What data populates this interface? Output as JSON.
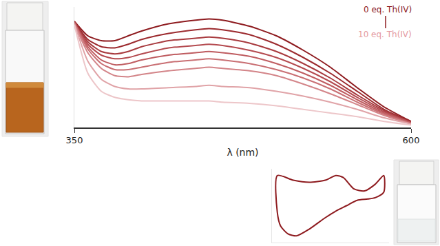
{
  "chart_data": [
    {
      "type": "line",
      "x_label": "λ (nm)",
      "x": [
        350,
        360,
        370,
        380,
        390,
        400,
        420,
        440,
        450,
        460,
        480,
        500,
        520,
        540,
        560,
        580,
        600
      ],
      "series": [
        {
          "color": "#8e1b1f",
          "values": [
            0.88,
            0.76,
            0.72,
            0.72,
            0.76,
            0.8,
            0.86,
            0.89,
            0.9,
            0.89,
            0.84,
            0.76,
            0.64,
            0.5,
            0.33,
            0.17,
            0.05
          ]
        },
        {
          "color": "#9c2a2e",
          "values": [
            0.88,
            0.73,
            0.67,
            0.66,
            0.69,
            0.73,
            0.78,
            0.81,
            0.82,
            0.81,
            0.77,
            0.69,
            0.58,
            0.45,
            0.3,
            0.15,
            0.05
          ]
        },
        {
          "color": "#a83a3e",
          "values": [
            0.88,
            0.71,
            0.63,
            0.61,
            0.63,
            0.67,
            0.72,
            0.74,
            0.75,
            0.74,
            0.7,
            0.63,
            0.53,
            0.41,
            0.27,
            0.14,
            0.04
          ]
        },
        {
          "color": "#b44a4f",
          "values": [
            0.87,
            0.69,
            0.6,
            0.57,
            0.58,
            0.61,
            0.66,
            0.68,
            0.69,
            0.68,
            0.64,
            0.58,
            0.49,
            0.38,
            0.25,
            0.13,
            0.04
          ]
        },
        {
          "color": "#bf5c60",
          "values": [
            0.87,
            0.67,
            0.56,
            0.52,
            0.53,
            0.56,
            0.6,
            0.62,
            0.63,
            0.62,
            0.59,
            0.53,
            0.45,
            0.35,
            0.23,
            0.12,
            0.04
          ]
        },
        {
          "color": "#c96f73",
          "values": [
            0.87,
            0.65,
            0.53,
            0.48,
            0.48,
            0.5,
            0.54,
            0.56,
            0.57,
            0.56,
            0.53,
            0.48,
            0.41,
            0.32,
            0.21,
            0.11,
            0.03
          ]
        },
        {
          "color": "#d38488",
          "values": [
            0.86,
            0.62,
            0.49,
            0.43,
            0.42,
            0.44,
            0.47,
            0.49,
            0.5,
            0.49,
            0.47,
            0.43,
            0.36,
            0.28,
            0.19,
            0.1,
            0.03
          ]
        },
        {
          "color": "#e0a3a7",
          "values": [
            0.86,
            0.55,
            0.4,
            0.34,
            0.32,
            0.32,
            0.33,
            0.34,
            0.35,
            0.34,
            0.33,
            0.3,
            0.26,
            0.21,
            0.15,
            0.08,
            0.03
          ]
        },
        {
          "color": "#edc6c9",
          "values": [
            0.85,
            0.45,
            0.3,
            0.25,
            0.23,
            0.22,
            0.22,
            0.22,
            0.22,
            0.21,
            0.2,
            0.18,
            0.15,
            0.12,
            0.09,
            0.05,
            0.02
          ]
        }
      ],
      "xlim": [
        350,
        600
      ],
      "xticks": [
        350,
        600
      ],
      "ylim": [
        0,
        1
      ],
      "tick_labels": "x",
      "annotations": [
        {
          "text": "0 eq. Th(IV)",
          "color": "#8e1b1f"
        },
        {
          "text": "10 eq. Th(IV)",
          "color": "#e49aa0"
        }
      ]
    },
    {
      "type": "line",
      "x": [
        0,
        15,
        30,
        45,
        55,
        62,
        72,
        82,
        92,
        100,
        100,
        92,
        85,
        75,
        65,
        55,
        45,
        30,
        18,
        10,
        3,
        0,
        0
      ],
      "values": [
        95,
        88,
        85,
        88,
        95,
        92,
        75,
        72,
        82,
        95,
        70,
        62,
        60,
        58,
        50,
        42,
        32,
        15,
        5,
        8,
        20,
        40,
        95
      ],
      "color": "#8e1b1f",
      "xlim": [
        -5,
        105
      ],
      "ylim": [
        -5,
        105
      ],
      "tick_labels": false
    }
  ]
}
